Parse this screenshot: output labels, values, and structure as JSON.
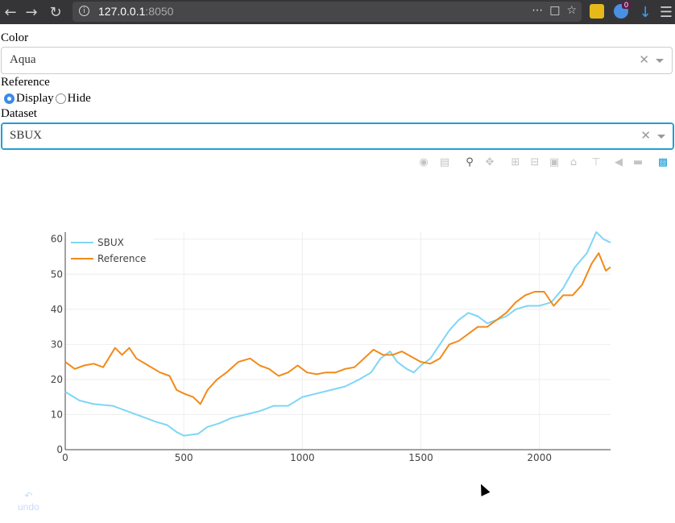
{
  "browser": {
    "url_host": "127.0.0.1",
    "url_port": ":8050",
    "badge_count": "0"
  },
  "form": {
    "color_label": "Color",
    "color_value": "Aqua",
    "reference_label": "Reference",
    "reference_options": [
      "Display",
      "Hide"
    ],
    "reference_selected": "Display",
    "dataset_label": "Dataset",
    "dataset_value": "SBUX"
  },
  "undo_label": "undo",
  "colors": {
    "sbux": "#7fd6f5",
    "reference": "#f28a19",
    "focus": "#1f9fd6"
  },
  "chart_data": {
    "type": "line",
    "title": "",
    "xlabel": "",
    "ylabel": "",
    "xlim": [
      0,
      2300
    ],
    "ylim": [
      0,
      62
    ],
    "xticks": [
      0,
      500,
      1000,
      1500,
      2000
    ],
    "yticks": [
      0,
      10,
      20,
      30,
      40,
      50,
      60
    ],
    "legend_position": "top-left",
    "grid": true,
    "series": [
      {
        "name": "SBUX",
        "color": "#7fd6f5",
        "points": [
          [
            0,
            16.5
          ],
          [
            60,
            14
          ],
          [
            120,
            13
          ],
          [
            200,
            12.5
          ],
          [
            260,
            11
          ],
          [
            320,
            9.5
          ],
          [
            380,
            8
          ],
          [
            430,
            7
          ],
          [
            470,
            5
          ],
          [
            500,
            4
          ],
          [
            560,
            4.5
          ],
          [
            600,
            6.5
          ],
          [
            650,
            7.5
          ],
          [
            700,
            9
          ],
          [
            760,
            10
          ],
          [
            820,
            11
          ],
          [
            880,
            12.5
          ],
          [
            940,
            12.5
          ],
          [
            1000,
            15
          ],
          [
            1060,
            16
          ],
          [
            1120,
            17
          ],
          [
            1180,
            18
          ],
          [
            1240,
            20
          ],
          [
            1290,
            22
          ],
          [
            1330,
            26
          ],
          [
            1370,
            28
          ],
          [
            1400,
            25
          ],
          [
            1440,
            23
          ],
          [
            1470,
            22
          ],
          [
            1500,
            24
          ],
          [
            1540,
            26
          ],
          [
            1580,
            30
          ],
          [
            1620,
            34
          ],
          [
            1660,
            37
          ],
          [
            1700,
            39
          ],
          [
            1740,
            38
          ],
          [
            1780,
            36
          ],
          [
            1820,
            37
          ],
          [
            1860,
            38
          ],
          [
            1900,
            40
          ],
          [
            1950,
            41
          ],
          [
            2000,
            41
          ],
          [
            2050,
            42
          ],
          [
            2100,
            46
          ],
          [
            2150,
            52
          ],
          [
            2200,
            56
          ],
          [
            2240,
            62
          ],
          [
            2270,
            60
          ],
          [
            2300,
            59
          ]
        ]
      },
      {
        "name": "Reference",
        "color": "#f28a19",
        "points": [
          [
            0,
            25
          ],
          [
            40,
            23
          ],
          [
            80,
            24
          ],
          [
            120,
            24.5
          ],
          [
            160,
            23.5
          ],
          [
            210,
            29
          ],
          [
            240,
            27
          ],
          [
            270,
            29
          ],
          [
            300,
            26
          ],
          [
            350,
            24
          ],
          [
            400,
            22
          ],
          [
            440,
            21
          ],
          [
            470,
            17
          ],
          [
            500,
            16
          ],
          [
            540,
            15
          ],
          [
            570,
            13
          ],
          [
            600,
            17
          ],
          [
            640,
            20
          ],
          [
            680,
            22
          ],
          [
            730,
            25
          ],
          [
            780,
            26
          ],
          [
            820,
            24
          ],
          [
            860,
            23
          ],
          [
            900,
            21
          ],
          [
            940,
            22
          ],
          [
            980,
            24
          ],
          [
            1020,
            22
          ],
          [
            1060,
            21.5
          ],
          [
            1100,
            22
          ],
          [
            1140,
            22
          ],
          [
            1180,
            23
          ],
          [
            1220,
            23.5
          ],
          [
            1260,
            26
          ],
          [
            1300,
            28.5
          ],
          [
            1340,
            27
          ],
          [
            1380,
            27
          ],
          [
            1420,
            28
          ],
          [
            1460,
            26.5
          ],
          [
            1500,
            25
          ],
          [
            1540,
            24.5
          ],
          [
            1580,
            26
          ],
          [
            1620,
            30
          ],
          [
            1660,
            31
          ],
          [
            1700,
            33
          ],
          [
            1740,
            35
          ],
          [
            1780,
            35
          ],
          [
            1820,
            37
          ],
          [
            1860,
            39
          ],
          [
            1900,
            42
          ],
          [
            1940,
            44
          ],
          [
            1980,
            45
          ],
          [
            2020,
            45
          ],
          [
            2060,
            41
          ],
          [
            2100,
            44
          ],
          [
            2140,
            44
          ],
          [
            2180,
            47
          ],
          [
            2220,
            53
          ],
          [
            2250,
            56
          ],
          [
            2280,
            51
          ],
          [
            2300,
            52
          ]
        ]
      }
    ]
  }
}
